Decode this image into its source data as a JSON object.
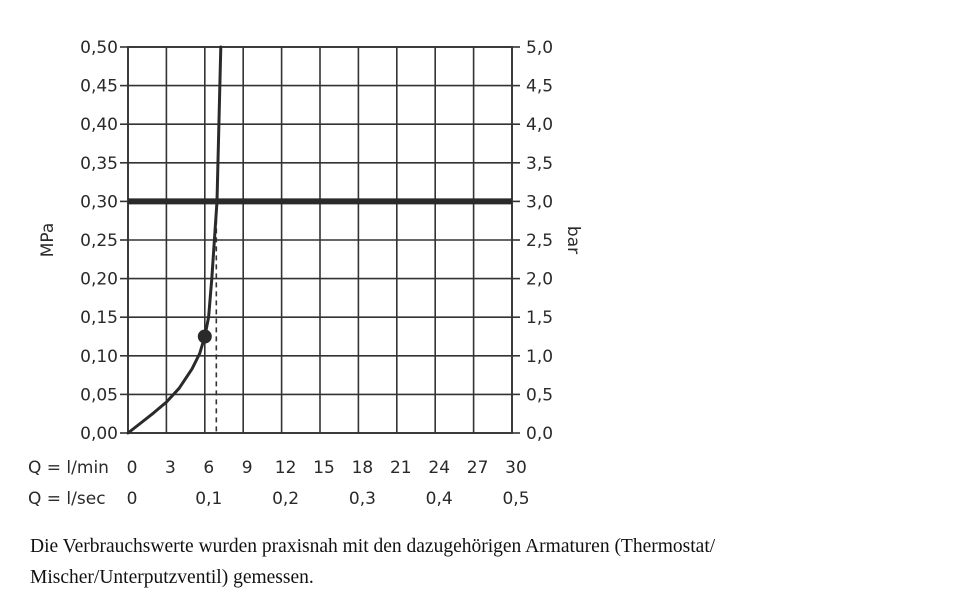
{
  "chart_data": {
    "type": "line",
    "ylabel_left": "MPa",
    "ylabel_right": "bar",
    "ylim": [
      0,
      0.5
    ],
    "xlim": [
      0,
      30
    ],
    "yticks_left": [
      "0,00",
      "0,05",
      "0,10",
      "0,15",
      "0,20",
      "0,25",
      "0,30",
      "0,35",
      "0,40",
      "0,45",
      "0,50"
    ],
    "yticks_right": [
      "0,0",
      "0,5",
      "1,0",
      "1,5",
      "2,0",
      "2,5",
      "3,0",
      "3,5",
      "4,0",
      "4,5",
      "5,0"
    ],
    "x_row_lmin_label": "Q = l/min",
    "x_row_lmin_ticks": [
      "0",
      "3",
      "6",
      "9",
      "12",
      "15",
      "18",
      "21",
      "24",
      "27",
      "30"
    ],
    "x_row_lsec_label": "Q = l/sec",
    "x_row_lsec_ticks": [
      "0",
      "",
      "0,1",
      "",
      "0,2",
      "",
      "0,3",
      "",
      "0,4",
      "",
      "0,5"
    ],
    "grid": true,
    "series": [
      {
        "x": [
          0,
          1,
          2,
          3,
          4,
          5,
          5.6,
          6,
          6.3,
          6.55,
          6.75,
          6.95,
          7.1,
          7.25
        ],
        "y": [
          0,
          0.013,
          0.026,
          0.04,
          0.058,
          0.083,
          0.103,
          0.125,
          0.15,
          0.2,
          0.25,
          0.3,
          0.4,
          0.5
        ]
      }
    ],
    "reference_line_y": 0.3,
    "marker_point": {
      "x": 6,
      "y": 0.125
    },
    "dashed_vertical_x": 6.9
  },
  "caption": {
    "line1": "Die Verbrauchswerte wurden praxisnah mit den dazugehörigen Armaturen (Thermostat/",
    "line2": "Mischer/Unterputzventil) gemessen."
  }
}
